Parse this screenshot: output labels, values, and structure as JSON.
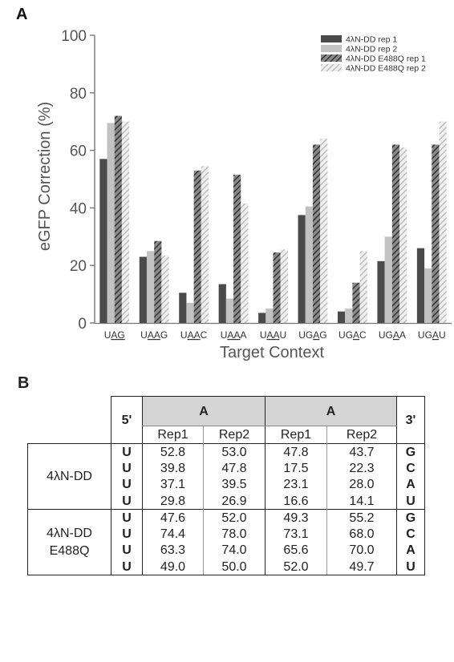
{
  "panel_a_label": "A",
  "panel_b_label": "B",
  "chart_data": {
    "type": "bar",
    "xlabel": "Target Context",
    "ylabel": "eGFP Correction (%)",
    "ylim": [
      0,
      100
    ],
    "yticks": [
      0,
      20,
      40,
      60,
      80,
      100
    ],
    "grid": false,
    "legend_position": "top-right",
    "categories": [
      {
        "pre": "U",
        "ul": "AG",
        "post": ""
      },
      {
        "pre": "U",
        "ul": "AA",
        "post": "G"
      },
      {
        "pre": "U",
        "ul": "AA",
        "post": "C"
      },
      {
        "pre": "U",
        "ul": "AA",
        "post": "A"
      },
      {
        "pre": "U",
        "ul": "AA",
        "post": "U"
      },
      {
        "pre": "UG",
        "ul": "A",
        "post": "G"
      },
      {
        "pre": "UG",
        "ul": "A",
        "post": "C"
      },
      {
        "pre": "UG",
        "ul": "A",
        "post": "A"
      },
      {
        "pre": "UG",
        "ul": "A",
        "post": "U"
      }
    ],
    "series": [
      {
        "name": "4λN-DD rep 1",
        "color": "#4a4a4a",
        "pattern": "solid",
        "values": [
          57,
          23,
          10.5,
          13.5,
          3.5,
          37.5,
          4,
          21.5,
          26
        ]
      },
      {
        "name": "4λN-DD rep 2",
        "color": "#c2c2c2",
        "pattern": "solid",
        "values": [
          69.5,
          25,
          7,
          8.5,
          5,
          40.5,
          5,
          30,
          19
        ]
      },
      {
        "name": "4λN-DD E488Q rep 1",
        "color": "#4a4a4a",
        "pattern": "hatched",
        "values": [
          72,
          28.5,
          53,
          51.5,
          24.5,
          62,
          14,
          62,
          62
        ]
      },
      {
        "name": "4λN-DD E488Q rep 2",
        "color": "#c2c2c2",
        "pattern": "hatched",
        "values": [
          70,
          23.5,
          54.5,
          41.5,
          25.5,
          64,
          25,
          61,
          70
        ]
      }
    ]
  },
  "table": {
    "five_prime": "5'",
    "three_prime": "3'",
    "group1_header": "A",
    "group2_header": "A",
    "sub_headers": [
      "Rep1",
      "Rep2",
      "Rep1",
      "Rep2"
    ],
    "row_groups": [
      {
        "label_lines": [
          "4λN-DD"
        ],
        "rows": [
          {
            "five": "U",
            "values": [
              "52.8",
              "53.0",
              "47.8",
              "43.7"
            ],
            "three": "G"
          },
          {
            "five": "U",
            "values": [
              "39.8",
              "47.8",
              "17.5",
              "22.3"
            ],
            "three": "C"
          },
          {
            "five": "U",
            "values": [
              "37.1",
              "39.5",
              "23.1",
              "28.0"
            ],
            "three": "A"
          },
          {
            "five": "U",
            "values": [
              "29.8",
              "26.9",
              "16.6",
              "14.1"
            ],
            "three": "U"
          }
        ]
      },
      {
        "label_lines": [
          "4λN-DD",
          "E488Q"
        ],
        "rows": [
          {
            "five": "U",
            "values": [
              "47.6",
              "52.0",
              "49.3",
              "55.2"
            ],
            "three": "G"
          },
          {
            "five": "U",
            "values": [
              "74.4",
              "78.0",
              "73.1",
              "68.0"
            ],
            "three": "C"
          },
          {
            "five": "U",
            "values": [
              "63.3",
              "74.0",
              "65.6",
              "70.0"
            ],
            "three": "A"
          },
          {
            "five": "U",
            "values": [
              "49.0",
              "50.0",
              "52.0",
              "49.7"
            ],
            "three": "U"
          }
        ]
      }
    ]
  }
}
